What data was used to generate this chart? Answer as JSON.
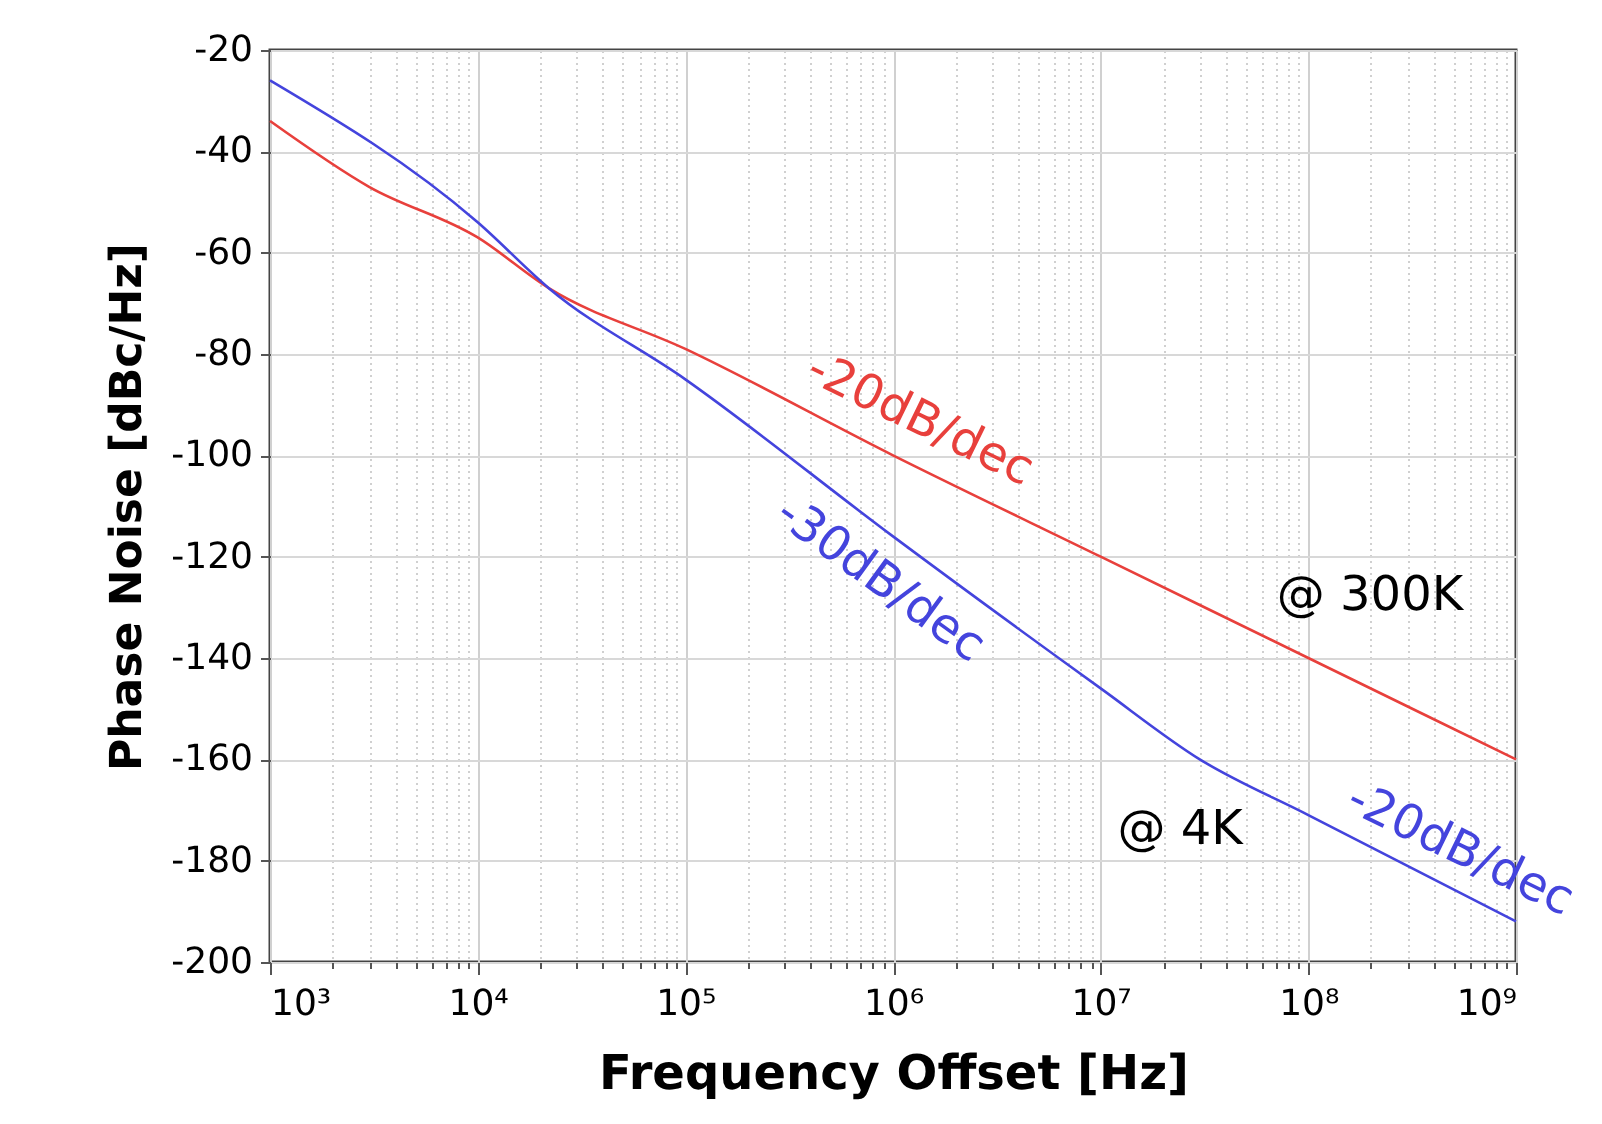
{
  "chart_data": {
    "type": "line",
    "xlabel": "Frequency Offset [Hz]",
    "ylabel": "Phase Noise [dBc/Hz]",
    "log": "x",
    "grid": true,
    "legend": false,
    "marker": "none",
    "line_style": "solid",
    "xlim": [
      1000,
      1000000000
    ],
    "ylim": [
      -200,
      -20
    ],
    "yticks": [
      -200,
      -180,
      -160,
      -140,
      -120,
      -100,
      -80,
      -60,
      -40,
      -20
    ],
    "xticks": [
      {
        "value": 1000,
        "label": "10³"
      },
      {
        "value": 2000,
        "label": null
      },
      {
        "value": 3000,
        "label": null
      },
      {
        "value": 4000,
        "label": null
      },
      {
        "value": 5000,
        "label": null
      },
      {
        "value": 6000,
        "label": null
      },
      {
        "value": 7000,
        "label": null
      },
      {
        "value": 8000,
        "label": null
      },
      {
        "value": 9000,
        "label": null
      },
      {
        "value": 10000,
        "label": "10⁴"
      },
      {
        "value": 20000,
        "label": null
      },
      {
        "value": 30000,
        "label": null
      },
      {
        "value": 40000,
        "label": null
      },
      {
        "value": 50000,
        "label": null
      },
      {
        "value": 60000,
        "label": null
      },
      {
        "value": 70000,
        "label": null
      },
      {
        "value": 80000,
        "label": null
      },
      {
        "value": 90000,
        "label": null
      },
      {
        "value": 100000,
        "label": "10⁵"
      },
      {
        "value": 200000,
        "label": null
      },
      {
        "value": 300000,
        "label": null
      },
      {
        "value": 400000,
        "label": null
      },
      {
        "value": 500000,
        "label": null
      },
      {
        "value": 600000,
        "label": null
      },
      {
        "value": 700000,
        "label": null
      },
      {
        "value": 800000,
        "label": null
      },
      {
        "value": 900000,
        "label": null
      },
      {
        "value": 1000000,
        "label": "10⁶"
      },
      {
        "value": 2000000,
        "label": null
      },
      {
        "value": 3000000,
        "label": null
      },
      {
        "value": 4000000,
        "label": null
      },
      {
        "value": 5000000,
        "label": null
      },
      {
        "value": 6000000,
        "label": null
      },
      {
        "value": 7000000,
        "label": null
      },
      {
        "value": 8000000,
        "label": null
      },
      {
        "value": 9000000,
        "label": null
      },
      {
        "value": 10000000,
        "label": "10⁷"
      },
      {
        "value": 20000000,
        "label": null
      },
      {
        "value": 30000000,
        "label": null
      },
      {
        "value": 40000000,
        "label": null
      },
      {
        "value": 50000000,
        "label": null
      },
      {
        "value": 60000000,
        "label": null
      },
      {
        "value": 70000000,
        "label": null
      },
      {
        "value": 80000000,
        "label": null
      },
      {
        "value": 90000000,
        "label": null
      },
      {
        "value": 100000000,
        "label": "10⁸"
      },
      {
        "value": 200000000,
        "label": null
      },
      {
        "value": 300000000,
        "label": null
      },
      {
        "value": 400000000,
        "label": null
      },
      {
        "value": 500000000,
        "label": null
      },
      {
        "value": 600000000,
        "label": null
      },
      {
        "value": 700000000,
        "label": null
      },
      {
        "value": 800000000,
        "label": null
      },
      {
        "value": 900000000,
        "label": null
      },
      {
        "value": 1000000000,
        "label": "10⁹"
      }
    ],
    "series": [
      {
        "color": "#e8403c",
        "x": [
          1000,
          3000,
          10000,
          22000,
          100000,
          1000000,
          10000000,
          100000000,
          1000000000
        ],
        "values": [
          -34,
          -47,
          -57,
          -67,
          -79,
          -100,
          -120,
          -140,
          -160
        ]
      },
      {
        "color": "#4444dd",
        "x": [
          1000,
          10000,
          22000,
          100000,
          1000000,
          10000000,
          30000000,
          100000000,
          1000000000
        ],
        "values": [
          -26,
          -54,
          -67,
          -85,
          -116,
          -146,
          -160,
          -171,
          -192
        ]
      }
    ],
    "annotations": [
      "-20dB/dec",
      "-30dB/dec",
      "@ 300K",
      "@ 4K",
      "-20dB/dec"
    ]
  }
}
